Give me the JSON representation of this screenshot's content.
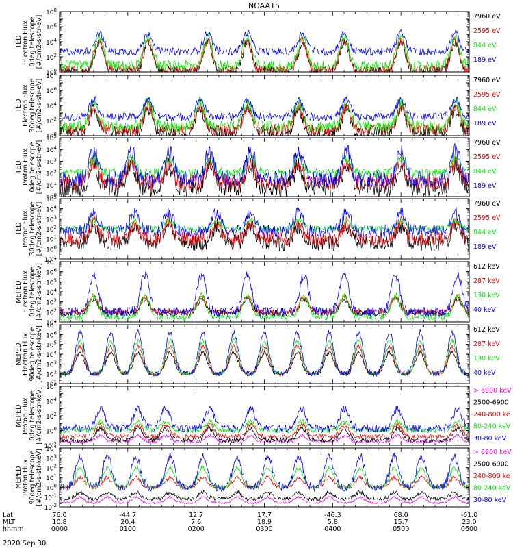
{
  "title": "NOAA15",
  "date_label": "2020 Sep 30",
  "colors": {
    "blue": "#0000ff",
    "red": "#ff0000",
    "green": "#00ee00",
    "black": "#000000",
    "magenta": "#ff00ff",
    "frame": "#000000"
  },
  "bottom_axis": {
    "row_labels": [
      "Lat",
      "MLT",
      "hhmm"
    ],
    "ticks": [
      {
        "time_hhmm": "0000",
        "lat": "76.0",
        "mlt": "10.8"
      },
      {
        "time_hhmm": "0100",
        "lat": "-44.7",
        "mlt": "20.4"
      },
      {
        "time_hhmm": "0200",
        "lat": "12.7",
        "mlt": "7.6"
      },
      {
        "time_hhmm": "0300",
        "lat": "17.7",
        "mlt": "18.9"
      },
      {
        "time_hhmm": "0400",
        "lat": "-46.3",
        "mlt": "5.8"
      },
      {
        "time_hhmm": "0500",
        "lat": "68.0",
        "mlt": "15.7"
      },
      {
        "time_hhmm": "0600",
        "lat": "-61.0",
        "mlt": "23.0"
      }
    ]
  },
  "chart_data": [
    {
      "type": "line",
      "panel": "ted-electron-0deg",
      "ylabel_lines": [
        "TED",
        "Electron Flux",
        "0deg telescope",
        "[#/cm2-s-str-eV]"
      ],
      "yscale": "log",
      "ylim_exp": [
        0,
        8
      ],
      "ytick_exps": [
        0,
        2,
        4,
        6,
        8
      ],
      "x_range_hours": [
        0,
        6
      ],
      "series": [
        {
          "name": "7960 eV",
          "color": "black",
          "base": 0.1,
          "peak": 4.0,
          "noise": 0.6
        },
        {
          "name": "2595 eV",
          "color": "red",
          "base": 0.3,
          "peak": 4.2,
          "noise": 0.6
        },
        {
          "name": "844 eV",
          "color": "green",
          "base": 0.8,
          "peak": 4.6,
          "noise": 0.7
        },
        {
          "name": "189 eV",
          "color": "blue",
          "base": 2.7,
          "peak": 5.2,
          "noise": 0.5
        }
      ],
      "bursts_hours": [
        0.58,
        1.3,
        2.17,
        2.75,
        3.56,
        4.17,
        5.0,
        5.79
      ]
    },
    {
      "type": "line",
      "panel": "ted-electron-30deg",
      "ylabel_lines": [
        "TED",
        "Electron Flux",
        "30deg telescope",
        "[#/cm2-s-str-eV]"
      ],
      "yscale": "log",
      "ylim_exp": [
        0,
        8
      ],
      "ytick_exps": [
        0,
        2,
        4,
        6,
        8
      ],
      "x_range_hours": [
        0,
        6
      ],
      "series": [
        {
          "name": "7960 eV",
          "color": "black",
          "base": 0.4,
          "peak": 3.6,
          "noise": 0.9
        },
        {
          "name": "2595 eV",
          "color": "red",
          "base": 0.8,
          "peak": 3.9,
          "noise": 0.8
        },
        {
          "name": "844 eV",
          "color": "green",
          "base": 1.2,
          "peak": 4.4,
          "noise": 0.8
        },
        {
          "name": "189 eV",
          "color": "blue",
          "base": 2.5,
          "peak": 4.8,
          "noise": 0.5
        }
      ],
      "bursts_hours": [
        0.5,
        1.3,
        2.06,
        2.75,
        3.5,
        4.2,
        5.0,
        5.8
      ]
    },
    {
      "type": "line",
      "panel": "ted-proton-0deg",
      "ylabel_lines": [
        "TED",
        "Proton Flux",
        "0deg telescope",
        "[#/cm2-s-str-eV]"
      ],
      "yscale": "log",
      "ylim_exp": [
        0,
        5
      ],
      "ytick_exps": [
        0,
        1,
        2,
        3,
        4,
        5
      ],
      "x_range_hours": [
        0,
        6
      ],
      "series": [
        {
          "name": "7960 eV",
          "color": "black",
          "base": 0.8,
          "peak": 2.6,
          "noise": 0.8
        },
        {
          "name": "2595 eV",
          "color": "red",
          "base": 1.2,
          "peak": 2.9,
          "noise": 0.7
        },
        {
          "name": "844 eV",
          "color": "green",
          "base": 2.0,
          "peak": 3.2,
          "noise": 0.4
        },
        {
          "name": "189 eV",
          "color": "blue",
          "base": 1.5,
          "peak": 3.9,
          "noise": 0.7
        }
      ],
      "bursts_hours": [
        0.5,
        1.05,
        1.6,
        2.2,
        2.8,
        3.5,
        4.2,
        5.0,
        5.8
      ]
    },
    {
      "type": "line",
      "panel": "ted-proton-30deg",
      "ylabel_lines": [
        "TED",
        "Proton Flux",
        "30deg telescope",
        "[#/cm2-s-str-eV]"
      ],
      "yscale": "log",
      "ylim_exp": [
        -1,
        5
      ],
      "ytick_exps": [
        -1,
        0,
        1,
        2,
        3,
        4,
        5
      ],
      "x_range_hours": [
        0,
        6
      ],
      "series": [
        {
          "name": "7960 eV",
          "color": "black",
          "base": 0.6,
          "peak": 2.3,
          "noise": 0.8
        },
        {
          "name": "2595 eV",
          "color": "red",
          "base": 1.0,
          "peak": 2.6,
          "noise": 0.7
        },
        {
          "name": "844 eV",
          "color": "green",
          "base": 2.0,
          "peak": 2.8,
          "noise": 0.3
        },
        {
          "name": "189 eV",
          "color": "blue",
          "base": 1.8,
          "peak": 3.6,
          "noise": 0.6
        }
      ],
      "bursts_hours": [
        0.5,
        1.1,
        1.6,
        2.3,
        2.8,
        3.5,
        4.2,
        5.0,
        5.8
      ]
    },
    {
      "type": "line",
      "panel": "meped-electron-0deg",
      "ylabel_lines": [
        "MEPED",
        "Electron Flux",
        "0deg telescope",
        "[#/cm2-s-str-keV]"
      ],
      "yscale": "log",
      "ylim_exp": [
        1,
        7
      ],
      "ytick_exps": [
        1,
        2,
        3,
        4,
        5,
        6,
        7
      ],
      "x_range_hours": [
        0,
        6
      ],
      "series": [
        {
          "name": "612 keV",
          "color": "black",
          "base": 1.9,
          "peak": 3.3,
          "noise": 0.3
        },
        {
          "name": "287 keV",
          "color": "red",
          "base": 2.0,
          "peak": 3.5,
          "noise": 0.3
        },
        {
          "name": "130 keV",
          "color": "green",
          "base": 1.5,
          "peak": 3.6,
          "noise": 0.3
        },
        {
          "name": "40 keV",
          "color": "blue",
          "base": 2.0,
          "peak": 5.7,
          "noise": 0.5
        }
      ],
      "bursts_hours": [
        0.5,
        1.25,
        2.08,
        2.75,
        3.58,
        4.17,
        4.92,
        5.83
      ]
    },
    {
      "type": "line",
      "panel": "meped-electron-90deg",
      "ylabel_lines": [
        "MEPED",
        "Electron Flux",
        "90deg telescope",
        "[#/cm2-s-str-keV]"
      ],
      "yscale": "log",
      "ylim_exp": [
        1,
        7
      ],
      "ytick_exps": [
        1,
        2,
        3,
        4,
        5,
        6,
        7
      ],
      "x_range_hours": [
        0,
        6
      ],
      "series": [
        {
          "name": "612 keV",
          "color": "black",
          "base": 2.0,
          "peak": 4.2,
          "noise": 0.2
        },
        {
          "name": "287 keV",
          "color": "red",
          "base": 2.0,
          "peak": 4.8,
          "noise": 0.2
        },
        {
          "name": "130 keV",
          "color": "green",
          "base": 2.0,
          "peak": 5.4,
          "noise": 0.2
        },
        {
          "name": "40 keV",
          "color": "blue",
          "base": 2.0,
          "peak": 6.2,
          "noise": 0.3
        }
      ],
      "bursts_hours": [
        0.3,
        0.75,
        1.15,
        1.62,
        2.1,
        2.55,
        3.0,
        3.48,
        3.95,
        4.38,
        4.83,
        5.28,
        5.75
      ]
    },
    {
      "type": "line",
      "panel": "meped-proton-0deg",
      "ylabel_lines": [
        "MEPED",
        "Proton Flux",
        "0deg telescope",
        "[#/cm2-s-str-keV]"
      ],
      "yscale": "log",
      "ylim_exp": [
        -2,
        6
      ],
      "ytick_exps": [
        -2,
        0,
        2,
        4,
        6
      ],
      "x_range_hours": [
        0,
        6
      ],
      "series": [
        {
          "name": "> 6900 keV",
          "color": "magenta",
          "base": -1.5,
          "peak": -0.7,
          "noise": 0.2
        },
        {
          "name": "2500-6900",
          "color": "black",
          "base": -1.3,
          "peak": 0.3,
          "noise": 0.3
        },
        {
          "name": "240-800 ke",
          "color": "red",
          "base": -0.8,
          "peak": 0.8,
          "noise": 0.3
        },
        {
          "name": "80-240 keV",
          "color": "green",
          "base": 0.0,
          "peak": 1.2,
          "noise": 0.3
        },
        {
          "name": "30-80 keV",
          "color": "blue",
          "base": 0.3,
          "peak": 3.0,
          "noise": 0.5
        }
      ],
      "bursts_hours": [
        0.6,
        1.15,
        1.55,
        2.2,
        2.8,
        3.55,
        4.17,
        4.95,
        5.83
      ]
    },
    {
      "type": "line",
      "panel": "meped-proton-90deg",
      "ylabel_lines": [
        "MEPED",
        "Proton Flux",
        "90deg telescope",
        "[#/cm2-s-str-keV]"
      ],
      "yscale": "log",
      "ylim_exp": [
        -2,
        4
      ],
      "ytick_exps": [
        -2,
        -1,
        0,
        1,
        2,
        3,
        4
      ],
      "x_range_hours": [
        0,
        6
      ],
      "series": [
        {
          "name": "> 6900 keV",
          "color": "magenta",
          "base": -1.6,
          "peak": -1.0,
          "noise": 0.1
        },
        {
          "name": "2500-6900",
          "color": "black",
          "base": -1.2,
          "peak": -0.5,
          "noise": 0.2
        },
        {
          "name": "240-800 ke",
          "color": "red",
          "base": 0.0,
          "peak": 1.0,
          "noise": 0.2
        },
        {
          "name": "80-240 keV",
          "color": "green",
          "base": 0.0,
          "peak": 2.0,
          "noise": 0.2
        },
        {
          "name": "30-80 keV",
          "color": "blue",
          "base": 0.0,
          "peak": 3.2,
          "noise": 0.4
        }
      ],
      "bursts_hours": [
        0.3,
        0.7,
        1.12,
        1.62,
        2.1,
        2.6,
        3.05,
        3.5,
        3.95,
        4.4,
        4.9,
        5.3,
        5.78
      ]
    }
  ]
}
